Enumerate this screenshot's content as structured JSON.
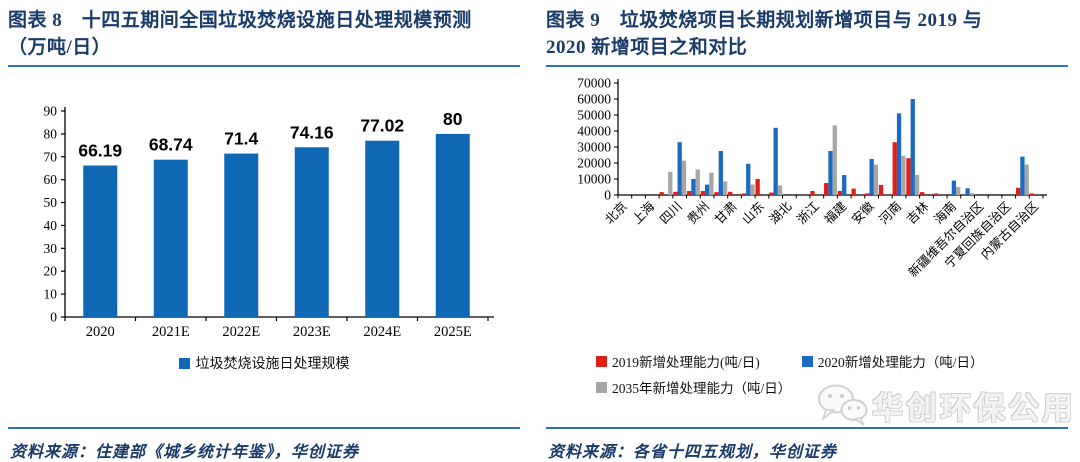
{
  "figure8": {
    "title_line1": "图表 8　十四五期间全国垃圾焚烧设施日处理规模预测",
    "title_line2": "（万吨/日）",
    "source": "资料来源：住建部《城乡统计年鉴》，华创证券"
  },
  "figure9": {
    "title_line1": "图表 9　垃圾焚烧项目长期规划新增项目与 2019 与",
    "title_line2": "2020 新增项目之和对比",
    "source": "资料来源：各省十四五规划，华创证券"
  },
  "watermark": {
    "icon": "wechat-icon",
    "text": "华创环保公用"
  },
  "chart_data": [
    {
      "type": "bar",
      "title": "十四五期间全国垃圾焚烧设施日处理规模预测（万吨/日）",
      "categories": [
        "2020",
        "2021E",
        "2022E",
        "2023E",
        "2024E",
        "2025E"
      ],
      "values": [
        66.19,
        68.74,
        71.4,
        74.16,
        77.02,
        80
      ],
      "data_labels": [
        "66.19",
        "68.74",
        "71.4",
        "74.16",
        "77.02",
        "80"
      ],
      "legend_label": "垃圾焚烧设施日处理规模",
      "bar_color": "#0f68b4",
      "ylim": [
        0,
        90
      ],
      "ytick_step": 10,
      "yticks": [
        0,
        10,
        20,
        30,
        40,
        50,
        60,
        70,
        80,
        90
      ],
      "grid": false,
      "legend_position": "bottom"
    },
    {
      "type": "bar",
      "title": "垃圾焚烧项目长期规划新增项目与 2019 与 2020 新增项目之和对比",
      "categories": [
        "北京",
        "",
        "上海",
        "",
        "四川",
        "",
        "贵州",
        "",
        "甘肃",
        "",
        "山东",
        "",
        "湖北",
        "",
        "浙江",
        "",
        "福建",
        "",
        "安徽",
        "",
        "河南",
        "",
        "吉林",
        "",
        "海南",
        "",
        "新疆维吾尔自治区",
        "",
        "宁夏回族自治区",
        "",
        "内蒙古自治区"
      ],
      "series": [
        {
          "name": "2019新增处理能力(吨/日)",
          "color": "#e02018",
          "values": [
            0,
            0,
            0,
            1800,
            2000,
            2500,
            2500,
            1800,
            2000,
            1000,
            10000,
            1500,
            0,
            0,
            2500,
            7500,
            2500,
            4000,
            1000,
            6300,
            33000,
            23000,
            1800,
            1000,
            0,
            0,
            0,
            0,
            0,
            4500,
            1000
          ]
        },
        {
          "name": "2020新增处理能力（吨/日）",
          "color": "#1b6cc0",
          "values": [
            0,
            0,
            0,
            0,
            33000,
            10000,
            6500,
            27500,
            0,
            19500,
            0,
            42000,
            0,
            0,
            0,
            27500,
            12500,
            0,
            22500,
            0,
            51000,
            60000,
            0,
            0,
            9000,
            4200,
            0,
            0,
            0,
            24000,
            0
          ]
        },
        {
          "name": "2035年新增处理能力（吨/日）",
          "color": "#a6a6a6",
          "values": [
            0,
            0,
            0,
            14500,
            21500,
            16000,
            14000,
            8500,
            0,
            6500,
            0,
            6000,
            0,
            0,
            0,
            43500,
            0,
            0,
            19000,
            0,
            24500,
            12500,
            0,
            0,
            5000,
            1200,
            0,
            0,
            0,
            19000,
            0
          ]
        }
      ],
      "ylim": [
        0,
        70000
      ],
      "ytick_step": 10000,
      "yticks": [
        0,
        10000,
        20000,
        30000,
        40000,
        50000,
        60000,
        70000
      ],
      "grid": false,
      "legend_position": "bottom"
    }
  ]
}
